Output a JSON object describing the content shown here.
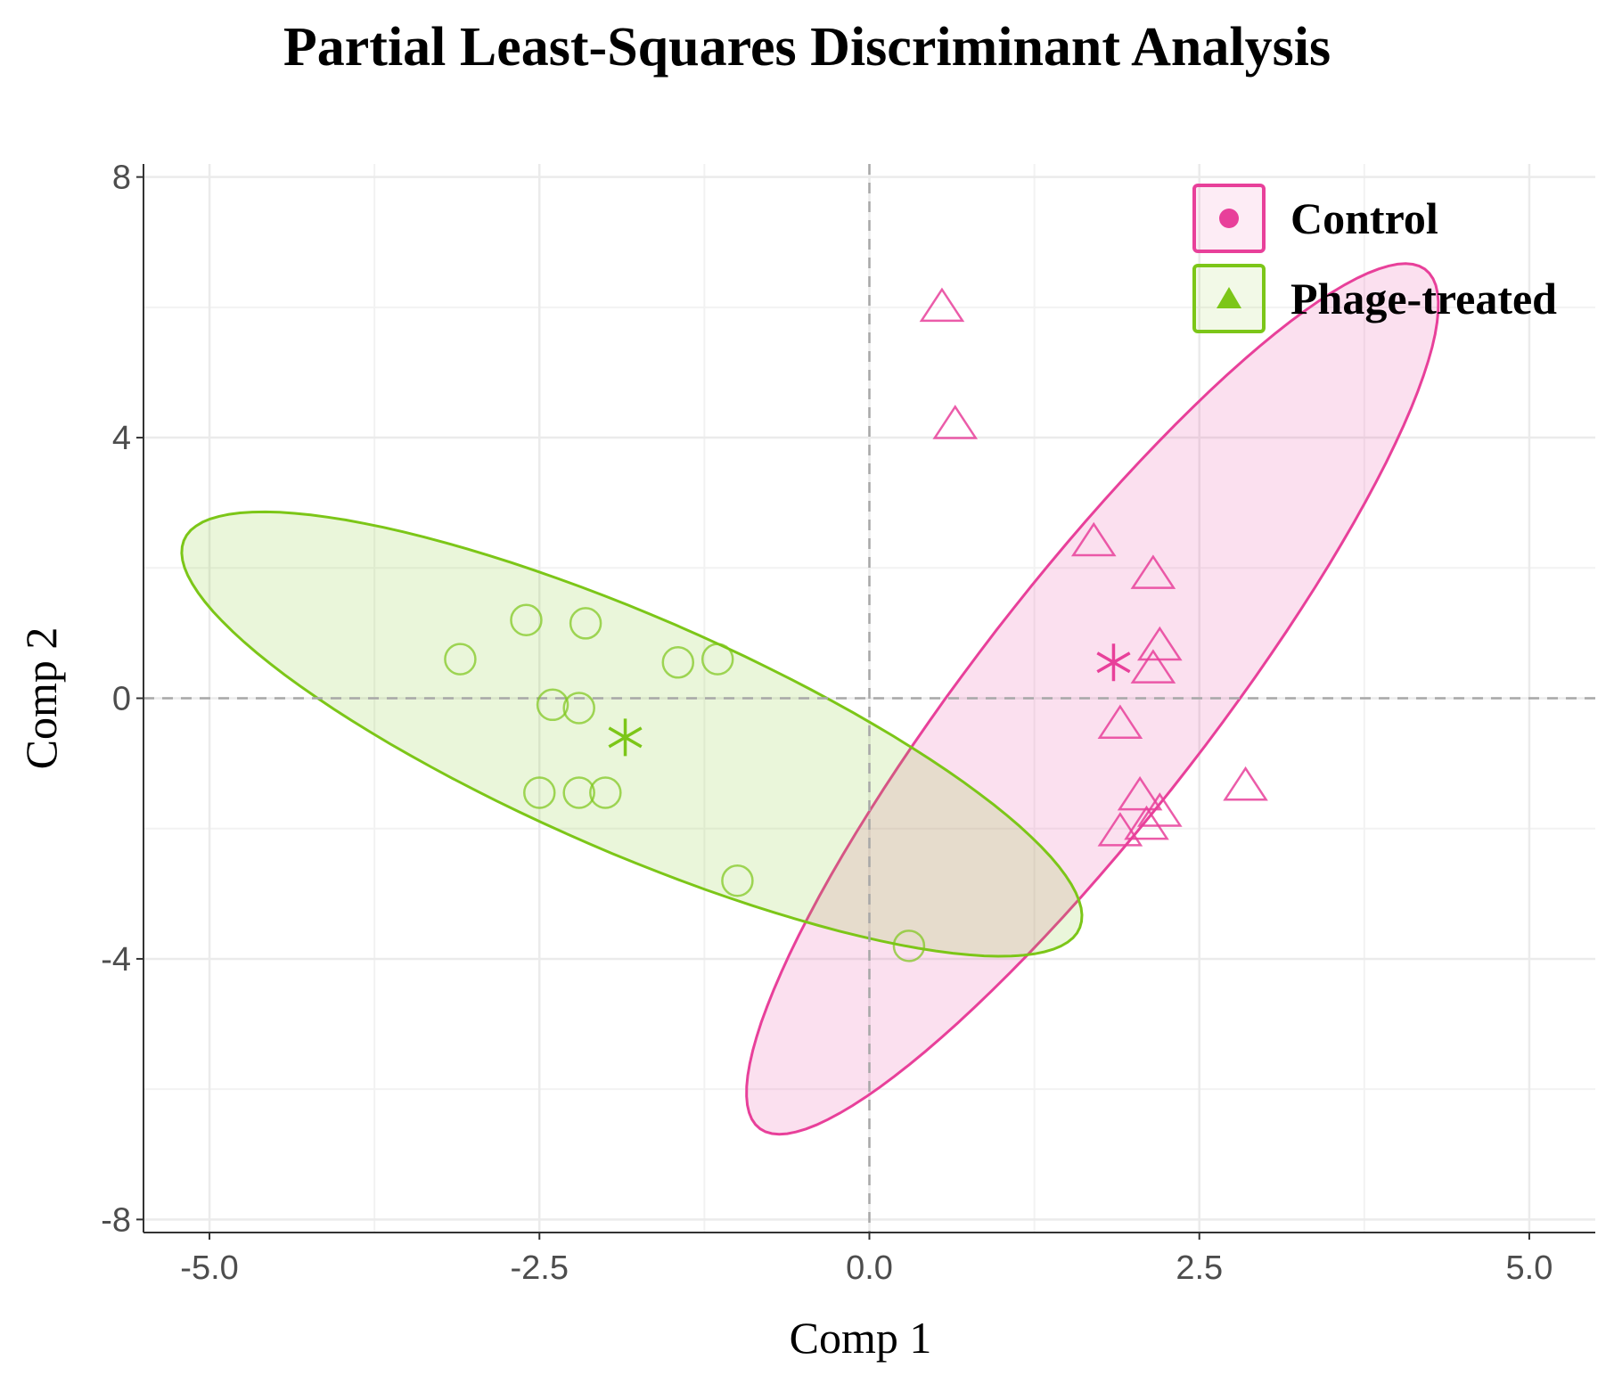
{
  "chart_data": {
    "type": "scatter",
    "title": "Partial Least-Squares Discriminant Analysis",
    "xlabel": "Comp 1",
    "ylabel": "Comp 2",
    "xlim": [
      -5.5,
      5.5
    ],
    "ylim": [
      -8.2,
      8.2
    ],
    "x_ticks": [
      -5.0,
      -2.5,
      0.0,
      2.5,
      5.0
    ],
    "x_tick_labels": [
      "-5.0",
      "-2.5",
      "0.0",
      "2.5",
      "5.0"
    ],
    "y_ticks": [
      -8,
      -4,
      0,
      4,
      8
    ],
    "y_tick_labels": [
      "-8",
      "-4",
      "0",
      "4",
      "8"
    ],
    "grid": true,
    "reference_lines": {
      "x": 0,
      "y": 0,
      "style": "dashed"
    },
    "legend": {
      "position": "top-right"
    },
    "series": [
      {
        "name": "Control",
        "color": "#e8409a",
        "marker": "triangle",
        "legend_marker": "circle",
        "centroid": {
          "x": 1.85,
          "y": 0.55
        },
        "ellipse": {
          "cx": 1.69,
          "cy": -0.01,
          "semi_major": 7.1,
          "semi_minor": 1.05,
          "tilt_deg": 70
        },
        "points": [
          {
            "x": 0.55,
            "y": 6.0
          },
          {
            "x": 0.65,
            "y": 4.2
          },
          {
            "x": 1.7,
            "y": 2.4
          },
          {
            "x": 2.15,
            "y": 1.9
          },
          {
            "x": 2.2,
            "y": 0.8
          },
          {
            "x": 2.15,
            "y": 0.45
          },
          {
            "x": 1.9,
            "y": -0.4
          },
          {
            "x": 2.05,
            "y": -1.5
          },
          {
            "x": 2.2,
            "y": -1.75
          },
          {
            "x": 2.1,
            "y": -1.95
          },
          {
            "x": 1.9,
            "y": -2.05
          },
          {
            "x": 2.85,
            "y": -1.35
          }
        ]
      },
      {
        "name": "Phage-treated",
        "color": "#7cc618",
        "marker": "circle",
        "legend_marker": "triangle",
        "centroid": {
          "x": -1.85,
          "y": -0.6
        },
        "ellipse": {
          "cx": -1.8,
          "cy": -0.55,
          "semi_major": 4.6,
          "semi_minor": 1.45,
          "tilt_deg": -45
        },
        "points": [
          {
            "x": -3.1,
            "y": 0.6
          },
          {
            "x": -2.6,
            "y": 1.2
          },
          {
            "x": -2.15,
            "y": 1.15
          },
          {
            "x": -1.45,
            "y": 0.55
          },
          {
            "x": -1.15,
            "y": 0.6
          },
          {
            "x": -2.4,
            "y": -0.1
          },
          {
            "x": -2.2,
            "y": -0.15
          },
          {
            "x": -2.5,
            "y": -1.45
          },
          {
            "x": -2.2,
            "y": -1.45
          },
          {
            "x": -2.0,
            "y": -1.45
          },
          {
            "x": -1.0,
            "y": -2.8
          },
          {
            "x": 0.3,
            "y": -3.8
          }
        ]
      }
    ]
  }
}
